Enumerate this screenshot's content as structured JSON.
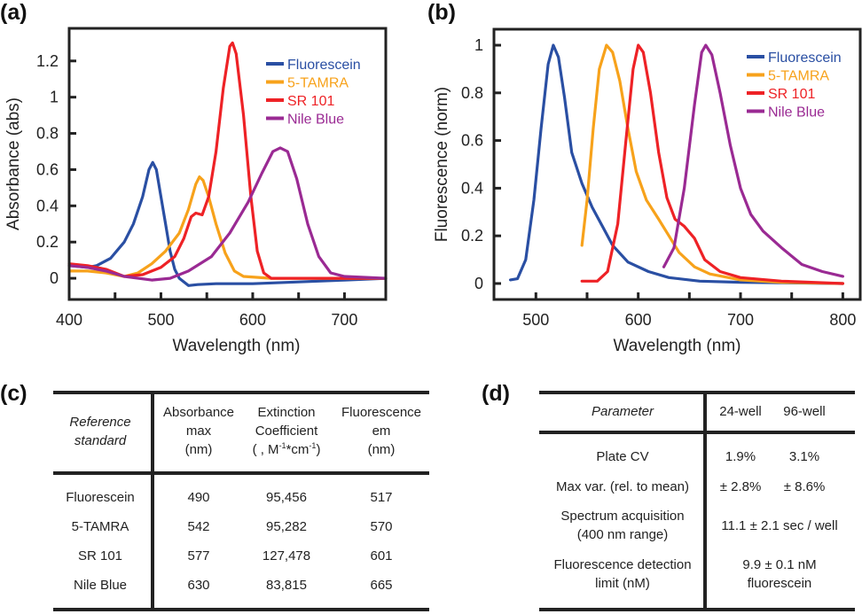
{
  "panels": {
    "a": "(a)",
    "b": "(b)",
    "c": "(c)",
    "d": "(d)"
  },
  "colors": {
    "Fluorescein": "#2a4fa3",
    "5-TAMRA": "#f7a21b",
    "SR 101": "#ee2226",
    "Nile Blue": "#9a2a93"
  },
  "chart_data": [
    {
      "type": "line",
      "xlabel": "Wavelength (nm)",
      "ylabel": "Absorbance (abs)",
      "xlim": [
        400,
        745
      ],
      "ylim": [
        -0.117,
        1.38
      ],
      "xticks": [
        400,
        450,
        500,
        550,
        600,
        650,
        700
      ],
      "xtick_labels": {
        "400": "400",
        "500": "500",
        "600": "600",
        "700": "700"
      },
      "yticks": [
        0,
        0.2,
        0.4,
        0.6,
        0.8,
        1,
        1.2
      ],
      "ytick_labels": [
        "0",
        "0.2",
        "0.4",
        "0.6",
        "0.8",
        "1",
        "1.2"
      ],
      "grid": false,
      "legend": "top-right",
      "series": [
        {
          "name": "Fluorescein",
          "x": [
            400,
            420,
            430,
            445,
            460,
            470,
            480,
            487,
            491,
            495,
            500,
            505,
            510,
            515,
            520,
            530,
            540,
            560,
            600,
            650,
            700,
            745
          ],
          "y": [
            0.07,
            0.06,
            0.07,
            0.11,
            0.2,
            0.3,
            0.45,
            0.6,
            0.64,
            0.6,
            0.45,
            0.3,
            0.15,
            0.05,
            0.0,
            -0.04,
            -0.035,
            -0.03,
            -0.03,
            -0.02,
            -0.01,
            0.0
          ]
        },
        {
          "name": "5-TAMRA",
          "x": [
            400,
            420,
            440,
            460,
            475,
            490,
            505,
            520,
            530,
            538,
            542,
            546,
            552,
            560,
            570,
            580,
            590,
            620,
            700,
            745
          ],
          "y": [
            0.04,
            0.04,
            0.03,
            0.01,
            0.03,
            0.08,
            0.15,
            0.25,
            0.38,
            0.52,
            0.56,
            0.54,
            0.45,
            0.3,
            0.14,
            0.04,
            0.01,
            0.0,
            0.0,
            0.0
          ]
        },
        {
          "name": "SR 101",
          "x": [
            400,
            420,
            440,
            460,
            480,
            500,
            515,
            525,
            533,
            538,
            545,
            552,
            560,
            568,
            575,
            578,
            582,
            590,
            598,
            605,
            612,
            620,
            700,
            745
          ],
          "y": [
            0.08,
            0.07,
            0.05,
            0.01,
            0.02,
            0.06,
            0.12,
            0.22,
            0.34,
            0.36,
            0.35,
            0.45,
            0.7,
            1.05,
            1.28,
            1.3,
            1.24,
            0.9,
            0.45,
            0.15,
            0.03,
            0.0,
            0.0,
            0.0
          ]
        },
        {
          "name": "Nile Blue",
          "x": [
            400,
            420,
            440,
            460,
            490,
            510,
            530,
            555,
            575,
            595,
            610,
            622,
            630,
            638,
            648,
            660,
            672,
            685,
            700,
            745
          ],
          "y": [
            0.07,
            0.06,
            0.04,
            0.01,
            -0.01,
            0.0,
            0.04,
            0.12,
            0.25,
            0.42,
            0.58,
            0.7,
            0.72,
            0.7,
            0.55,
            0.3,
            0.12,
            0.03,
            0.01,
            0.0
          ]
        }
      ]
    },
    {
      "type": "line",
      "xlabel": "Wavelength (nm)",
      "ylabel": "Fluorescence (norm)",
      "xlim": [
        459,
        817
      ],
      "ylim": [
        -0.067,
        1.067
      ],
      "xticks": [
        500,
        550,
        600,
        650,
        700,
        750,
        800
      ],
      "xtick_labels": {
        "500": "500",
        "600": "600",
        "700": "700",
        "800": "800"
      },
      "yticks": [
        0,
        0.2,
        0.4,
        0.6,
        0.8,
        1
      ],
      "ytick_labels": [
        "0",
        "0.2",
        "0.4",
        "0.6",
        "0.8",
        "1"
      ],
      "grid": false,
      "legend": "top-right",
      "series": [
        {
          "name": "Fluorescein",
          "x": [
            475,
            482,
            490,
            498,
            505,
            512,
            517,
            522,
            528,
            535,
            545,
            555,
            565,
            575,
            590,
            610,
            630,
            660,
            700,
            800
          ],
          "y": [
            0.015,
            0.02,
            0.1,
            0.35,
            0.65,
            0.92,
            1.0,
            0.95,
            0.78,
            0.55,
            0.42,
            0.32,
            0.24,
            0.16,
            0.09,
            0.05,
            0.025,
            0.01,
            0.005,
            0.0
          ]
        },
        {
          "name": "5-TAMRA",
          "x": [
            545,
            550,
            556,
            562,
            569,
            575,
            582,
            590,
            598,
            608,
            620,
            630,
            640,
            655,
            670,
            700,
            740,
            800
          ],
          "y": [
            0.16,
            0.35,
            0.65,
            0.9,
            1.0,
            0.97,
            0.85,
            0.65,
            0.47,
            0.35,
            0.27,
            0.2,
            0.13,
            0.07,
            0.04,
            0.015,
            0.005,
            0.0
          ]
        },
        {
          "name": "SR 101",
          "x": [
            545,
            560,
            570,
            580,
            588,
            595,
            600,
            605,
            612,
            620,
            628,
            636,
            645,
            655,
            665,
            680,
            700,
            740,
            800
          ],
          "y": [
            0.01,
            0.01,
            0.05,
            0.25,
            0.6,
            0.9,
            1.0,
            0.97,
            0.8,
            0.55,
            0.36,
            0.27,
            0.24,
            0.19,
            0.1,
            0.05,
            0.025,
            0.01,
            0.0
          ]
        },
        {
          "name": "Nile Blue",
          "x": [
            625,
            635,
            645,
            655,
            662,
            666,
            672,
            680,
            690,
            700,
            710,
            722,
            740,
            760,
            780,
            800
          ],
          "y": [
            0.07,
            0.15,
            0.4,
            0.75,
            0.97,
            1.0,
            0.96,
            0.8,
            0.58,
            0.4,
            0.29,
            0.22,
            0.15,
            0.08,
            0.05,
            0.03
          ]
        }
      ]
    }
  ],
  "table_c": {
    "headers": {
      "ref": [
        "Reference",
        "standard"
      ],
      "abs": [
        "Absorbance",
        "max",
        "(nm)"
      ],
      "ext": [
        "Extinction",
        "Coefficient",
        "( , M",
        "-1",
        "*cm",
        "-1",
        ")"
      ],
      "em": [
        "Fluorescence",
        "em",
        "(nm)"
      ]
    },
    "rows": [
      {
        "name": "Fluorescein",
        "abs": "490",
        "ext": "95,456",
        "em": "517"
      },
      {
        "name": "5-TAMRA",
        "abs": "542",
        "ext": "95,282",
        "em": "570"
      },
      {
        "name": "SR 101",
        "abs": "577",
        "ext": "127,478",
        "em": "601"
      },
      {
        "name": "Nile Blue",
        "abs": "630",
        "ext": "83,815",
        "em": "665"
      }
    ]
  },
  "table_d": {
    "headers": {
      "param": "Parameter",
      "w24": "24-well",
      "w96": "96-well"
    },
    "rows": [
      {
        "param": [
          "Plate CV"
        ],
        "w24": "1.9%",
        "w96": "3.1%"
      },
      {
        "param": [
          "Max var. (rel. to mean)"
        ],
        "w24": "± 2.8%",
        "w96": "± 8.6%"
      },
      {
        "param": [
          "Spectrum acquisition",
          "(400 nm range)"
        ],
        "both": [
          "11.1 ± 2.1 sec / well"
        ]
      },
      {
        "param": [
          "Fluorescence detection",
          "limit (nM)"
        ],
        "both": [
          "9.9 ± 0.1 nM",
          "fluorescein"
        ]
      }
    ]
  }
}
